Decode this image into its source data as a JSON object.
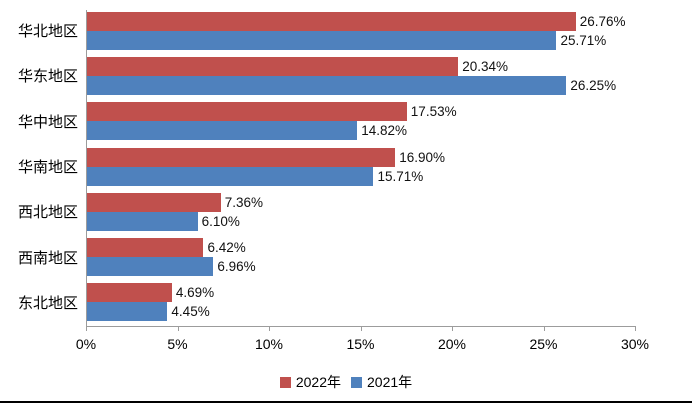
{
  "chart_data": {
    "type": "bar",
    "orientation": "horizontal",
    "categories": [
      "华北地区",
      "华东地区",
      "华中地区",
      "华南地区",
      "西北地区",
      "西南地区",
      "东北地区"
    ],
    "series": [
      {
        "name": "2022年",
        "color": "#C0504D",
        "values": [
          26.76,
          20.34,
          17.53,
          16.9,
          7.36,
          6.42,
          4.69
        ],
        "labels": [
          "26.76%",
          "20.34%",
          "17.53%",
          "16.90%",
          "7.36%",
          "6.42%",
          "4.69%"
        ]
      },
      {
        "name": "2021年",
        "color": "#4F81BD",
        "values": [
          25.71,
          26.25,
          14.82,
          15.71,
          6.1,
          6.96,
          4.45
        ],
        "labels": [
          "25.71%",
          "26.25%",
          "14.82%",
          "15.71%",
          "6.10%",
          "6.96%",
          "4.45%"
        ]
      }
    ],
    "x_axis": {
      "min": 0,
      "max": 30,
      "tick_labels": [
        "0%",
        "5%",
        "10%",
        "15%",
        "20%",
        "25%",
        "30%"
      ]
    },
    "legend": {
      "position": "bottom",
      "entries": [
        "2022年",
        "2021年"
      ]
    },
    "grid": false,
    "title": "",
    "xlabel": "",
    "ylabel": "",
    "axis_color": "#9c9c9c",
    "text_color": "#000000",
    "bottom_rule_color": "#000000"
  }
}
